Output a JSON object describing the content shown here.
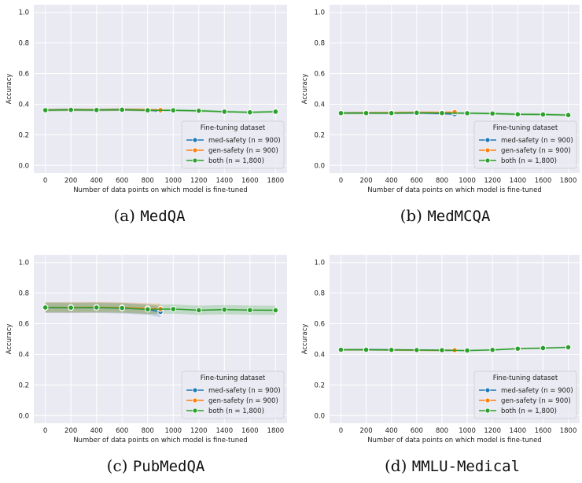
{
  "colors": {
    "panel_bg": "#EAEAF2",
    "grid": "#FFFFFF",
    "med_safety": "#1F77B4",
    "gen_safety": "#FF7F0E",
    "both": "#2CA02C"
  },
  "chart_data": [
    {
      "type": "line",
      "caption": {
        "prefix": "(a)",
        "name": "MedQA"
      },
      "xlabel": "Number of data points on which model is fine-tuned",
      "ylabel": "Accuracy",
      "xlim": [
        0,
        1800
      ],
      "ylim": [
        0,
        1
      ],
      "x_ticks": [
        "0",
        "200",
        "400",
        "600",
        "800",
        "1000",
        "1200",
        "1400",
        "1600",
        "1800"
      ],
      "y_ticks": [
        "0.0",
        "0.2",
        "0.4",
        "0.6",
        "0.8",
        "1.0"
      ],
      "grid": true,
      "legend": {
        "title": "Fine-tuning dataset",
        "position": "lower-right"
      },
      "series": [
        {
          "name": "med-safety (n = 900)",
          "color": "#1F77B4",
          "x": [
            0,
            200,
            400,
            600,
            800,
            900
          ],
          "y": [
            0.362,
            0.364,
            0.362,
            0.365,
            0.362,
            0.355
          ],
          "band": 0.008
        },
        {
          "name": "gen-safety (n = 900)",
          "color": "#FF7F0E",
          "x": [
            0,
            200,
            400,
            600,
            800,
            900
          ],
          "y": [
            0.362,
            0.364,
            0.363,
            0.365,
            0.364,
            0.362
          ],
          "band": 0.008
        },
        {
          "name": "both (n = 1,800)",
          "color": "#2CA02C",
          "x": [
            0,
            200,
            400,
            600,
            800,
            1000,
            1200,
            1400,
            1600,
            1800
          ],
          "y": [
            0.361,
            0.363,
            0.362,
            0.364,
            0.36,
            0.36,
            0.357,
            0.351,
            0.347,
            0.351
          ],
          "band": 0.008
        }
      ]
    },
    {
      "type": "line",
      "caption": {
        "prefix": "(b)",
        "name": "MedMCQA"
      },
      "xlabel": "Number of data points on which model is fine-tuned",
      "ylabel": "Accuracy",
      "xlim": [
        0,
        1800
      ],
      "ylim": [
        0,
        1
      ],
      "x_ticks": [
        "0",
        "200",
        "400",
        "600",
        "800",
        "1000",
        "1200",
        "1400",
        "1600",
        "1800"
      ],
      "y_ticks": [
        "0.0",
        "0.2",
        "0.4",
        "0.6",
        "0.8",
        "1.0"
      ],
      "grid": true,
      "legend": {
        "title": "Fine-tuning dataset",
        "position": "lower-right"
      },
      "series": [
        {
          "name": "med-safety (n = 900)",
          "color": "#1F77B4",
          "x": [
            0,
            200,
            400,
            600,
            800,
            900
          ],
          "y": [
            0.342,
            0.343,
            0.342,
            0.343,
            0.339,
            0.335
          ],
          "band": 0.008
        },
        {
          "name": "gen-safety (n = 900)",
          "color": "#FF7F0E",
          "x": [
            0,
            200,
            400,
            600,
            800,
            900
          ],
          "y": [
            0.342,
            0.343,
            0.344,
            0.346,
            0.346,
            0.348
          ],
          "band": 0.008
        },
        {
          "name": "both (n = 1,800)",
          "color": "#2CA02C",
          "x": [
            0,
            200,
            400,
            600,
            800,
            1000,
            1200,
            1400,
            1600,
            1800
          ],
          "y": [
            0.342,
            0.342,
            0.342,
            0.344,
            0.342,
            0.341,
            0.339,
            0.334,
            0.333,
            0.329
          ],
          "band": 0.008
        }
      ]
    },
    {
      "type": "line",
      "caption": {
        "prefix": "(c)",
        "name": "PubMedQA"
      },
      "xlabel": "Number of data points on which model is fine-tuned",
      "ylabel": "Accuracy",
      "xlim": [
        0,
        1800
      ],
      "ylim": [
        0,
        1
      ],
      "x_ticks": [
        "0",
        "200",
        "400",
        "600",
        "800",
        "1000",
        "1200",
        "1400",
        "1600",
        "1800"
      ],
      "y_ticks": [
        "0.0",
        "0.2",
        "0.4",
        "0.6",
        "0.8",
        "1.0"
      ],
      "grid": true,
      "legend": {
        "title": "Fine-tuning dataset",
        "position": "lower-right"
      },
      "series": [
        {
          "name": "med-safety (n = 900)",
          "color": "#1F77B4",
          "x": [
            0,
            200,
            400,
            600,
            800,
            900
          ],
          "y": [
            0.705,
            0.704,
            0.705,
            0.702,
            0.694,
            0.678
          ],
          "band": 0.035
        },
        {
          "name": "gen-safety (n = 900)",
          "color": "#FF7F0E",
          "x": [
            0,
            200,
            400,
            600,
            800,
            900
          ],
          "y": [
            0.706,
            0.707,
            0.708,
            0.706,
            0.7,
            0.697
          ],
          "band": 0.035
        },
        {
          "name": "both (n = 1,800)",
          "color": "#2CA02C",
          "x": [
            0,
            200,
            400,
            600,
            800,
            1000,
            1200,
            1400,
            1600,
            1800
          ],
          "y": [
            0.706,
            0.705,
            0.706,
            0.703,
            0.694,
            0.696,
            0.688,
            0.692,
            0.689,
            0.688
          ],
          "band": 0.03
        }
      ]
    },
    {
      "type": "line",
      "caption": {
        "prefix": "(d)",
        "name": "MMLU-Medical"
      },
      "xlabel": "Number of data points on which model is fine-tuned",
      "ylabel": "Accuracy",
      "xlim": [
        0,
        1800
      ],
      "ylim": [
        0,
        1
      ],
      "x_ticks": [
        "0",
        "200",
        "400",
        "600",
        "800",
        "1000",
        "1200",
        "1400",
        "1600",
        "1800"
      ],
      "y_ticks": [
        "0.0",
        "0.2",
        "0.4",
        "0.6",
        "0.8",
        "1.0"
      ],
      "grid": true,
      "legend": {
        "title": "Fine-tuning dataset",
        "position": "lower-right"
      },
      "series": [
        {
          "name": "med-safety (n = 900)",
          "color": "#1F77B4",
          "x": [
            0,
            200,
            400,
            600,
            800,
            900
          ],
          "y": [
            0.43,
            0.431,
            0.43,
            0.428,
            0.427,
            0.426
          ],
          "band": 0.006
        },
        {
          "name": "gen-safety (n = 900)",
          "color": "#FF7F0E",
          "x": [
            0,
            200,
            400,
            600,
            800,
            900
          ],
          "y": [
            0.43,
            0.43,
            0.429,
            0.427,
            0.426,
            0.427
          ],
          "band": 0.006
        },
        {
          "name": "both (n = 1,800)",
          "color": "#2CA02C",
          "x": [
            0,
            200,
            400,
            600,
            800,
            1000,
            1200,
            1400,
            1600,
            1800
          ],
          "y": [
            0.43,
            0.43,
            0.429,
            0.428,
            0.427,
            0.425,
            0.429,
            0.437,
            0.441,
            0.446
          ],
          "band": 0.006
        }
      ]
    }
  ]
}
